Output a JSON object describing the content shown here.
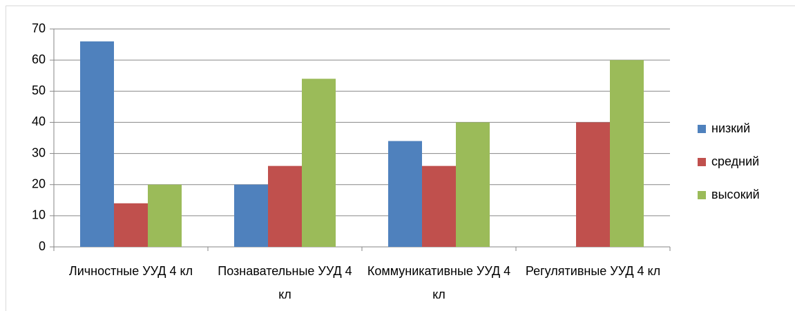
{
  "chart_data": {
    "type": "bar",
    "categories": [
      "Личностные УУД 4 кл",
      "Познавательные УУД 4 кл",
      "Коммуникативные УУД 4 кл",
      "Регулятивные УУД 4 кл"
    ],
    "series": [
      {
        "name": "низкий",
        "color": "#4f81bd",
        "values": [
          66,
          20,
          34,
          0
        ]
      },
      {
        "name": "средний",
        "color": "#c0504d",
        "values": [
          14,
          26,
          26,
          40
        ]
      },
      {
        "name": "высокий",
        "color": "#9bbb59",
        "values": [
          20,
          54,
          40,
          60
        ]
      }
    ],
    "ylim": [
      0,
      70
    ],
    "yticks": [
      0,
      10,
      20,
      30,
      40,
      50,
      60,
      70
    ],
    "grid": true,
    "legend": "right"
  }
}
